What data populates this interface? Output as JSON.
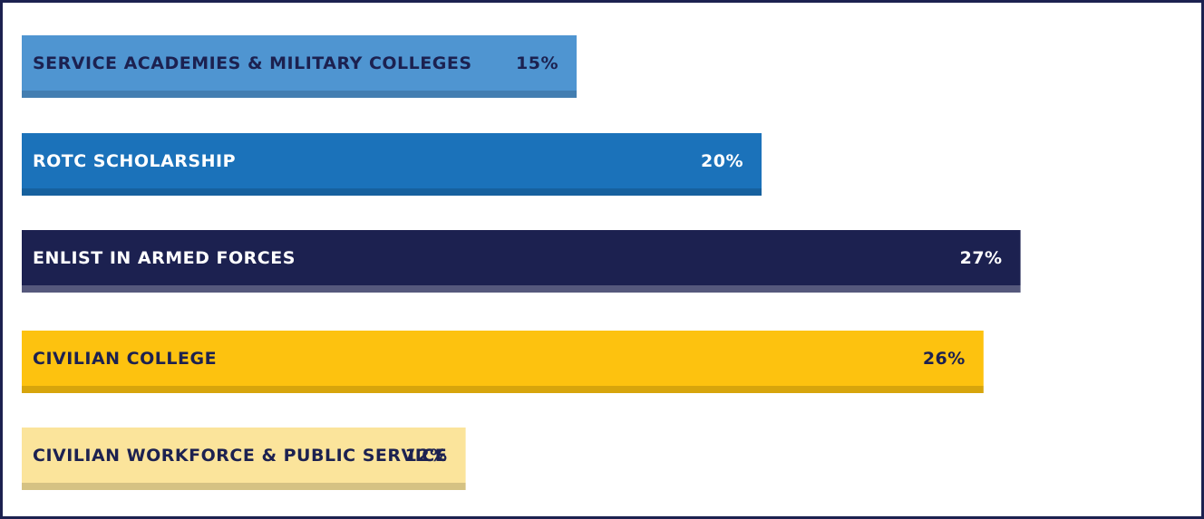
{
  "chart_data": {
    "type": "hbar",
    "categories": [
      "SERVICE ACADEMIES & MILITARY COLLEGES",
      "ROTC SCHOLARSHIP",
      "ENLIST IN ARMED FORCES",
      "CIVILIAN COLLEGE",
      "CIVILIAN WORKFORCE & PUBLIC SERVICE"
    ],
    "values": [
      15,
      20,
      27,
      26,
      12
    ],
    "value_labels": [
      "15%",
      "20%",
      "27%",
      "26%",
      "12%"
    ],
    "colors": [
      "#4f95d1",
      "#1b72ba",
      "#1c2150",
      "#fdc20f",
      "#fbe49b"
    ]
  }
}
